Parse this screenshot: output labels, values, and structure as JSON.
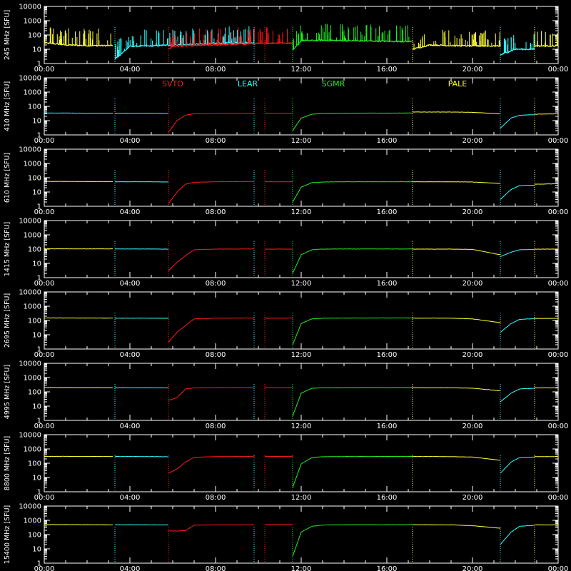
{
  "figure": {
    "background": "#000000",
    "axis_color": "#ffffff",
    "station_colors": {
      "SVTO": "#ff1a1a",
      "LEAR": "#33ffff",
      "SGMR": "#22ee22",
      "PALE": "#ffff33"
    },
    "legend": [
      {
        "name": "SVTO",
        "color": "#ff1a1a"
      },
      {
        "name": "LEAR",
        "color": "#33ffff"
      },
      {
        "name": "SGMR",
        "color": "#22ee22"
      },
      {
        "name": "PALE",
        "color": "#ffff33"
      }
    ],
    "x_tick_labels": [
      "00:00",
      "04:00",
      "08:00",
      "12:00",
      "16:00",
      "20:00",
      "00:00"
    ],
    "y_tick_labels": [
      "1",
      "10",
      "100",
      "1000",
      "10000"
    ]
  },
  "chart_data": {
    "type": "line",
    "x_unit": "hours UT",
    "xlim": [
      0,
      24
    ],
    "y_scale": "log",
    "ylim": [
      1,
      10000
    ],
    "y_unit": "SFU",
    "coverage": [
      {
        "station": "PALE",
        "from": 0,
        "to": 3.2
      },
      {
        "station": "LEAR",
        "from": 3.3,
        "to": 5.8
      },
      {
        "station": "SVTO",
        "from": 5.8,
        "to": 9.8
      },
      {
        "station": "LEAR",
        "from": 9.8,
        "to": 10.3
      },
      {
        "station": "SVTO",
        "from": 10.3,
        "to": 11.6
      },
      {
        "station": "SGMR",
        "from": 11.6,
        "to": 17.2
      },
      {
        "station": "PALE",
        "from": 17.2,
        "to": 21.3
      },
      {
        "station": "LEAR",
        "from": 21.3,
        "to": 22.9
      },
      {
        "station": "PALE",
        "from": 22.9,
        "to": 24
      }
    ],
    "panels": [
      {
        "ylabel": "245 MHz  [SFU]",
        "series": [
          {
            "name": "PALE",
            "x": [
              0,
              0.5,
              1,
              2,
              3.2
            ],
            "y": [
              28,
              24,
              20,
              18,
              18
            ]
          },
          {
            "name": "LEAR",
            "x": [
              3.3,
              4,
              5,
              6,
              7,
              8,
              9.8
            ],
            "y": [
              2,
              16,
              17,
              20,
              22,
              26,
              30
            ]
          },
          {
            "name": "SVTO",
            "x": [
              5.8,
              6,
              10.3,
              11,
              11.6
            ],
            "y": [
              10,
              16,
              26,
              28,
              26
            ]
          },
          {
            "name": "SGMR",
            "x": [
              11.6,
              12,
              13,
              14,
              15,
              16,
              17.2
            ],
            "y": [
              8,
              40,
              42,
              40,
              38,
              36,
              35
            ]
          },
          {
            "name": "PALE",
            "x": [
              17.2,
              18,
              19,
              20,
              21.3
            ],
            "y": [
              10,
              20,
              18,
              17,
              17
            ]
          },
          {
            "name": "LEAR",
            "x": [
              21.3,
              22,
              22.9
            ],
            "y": [
              4,
              10,
              10
            ]
          },
          {
            "name": "PALE",
            "x": [
              22.9,
              24
            ],
            "y": [
              17,
              17
            ]
          }
        ]
      },
      {
        "ylabel": "410 MHz  [SFU]",
        "series": [
          {
            "name": "LEAR",
            "x": [
              0,
              1,
              2,
              3.2
            ],
            "y": [
              34,
              34,
              33,
              33
            ]
          },
          {
            "name": "LEAR",
            "x": [
              3.3,
              4,
              5,
              5.8
            ],
            "y": [
              33,
              33,
              33,
              32
            ]
          },
          {
            "name": "SVTO",
            "x": [
              5.8,
              6.2,
              6.6,
              7,
              8,
              9.8
            ],
            "y": [
              1.5,
              10,
              24,
              30,
              32,
              32
            ]
          },
          {
            "name": "SVTO",
            "x": [
              10.3,
              11.6
            ],
            "y": [
              33,
              33
            ]
          },
          {
            "name": "SGMR",
            "x": [
              11.6,
              12,
              12.5,
              13,
              14,
              17.2
            ],
            "y": [
              2,
              15,
              28,
              32,
              33,
              34
            ]
          },
          {
            "name": "PALE",
            "x": [
              17.2,
              18,
              19,
              20,
              21.3
            ],
            "y": [
              40,
              40,
              40,
              38,
              30
            ]
          },
          {
            "name": "LEAR",
            "x": [
              21.3,
              21.8,
              22.2,
              22.9
            ],
            "y": [
              3,
              15,
              24,
              26
            ]
          },
          {
            "name": "PALE",
            "x": [
              22.9,
              24
            ],
            "y": [
              28,
              30
            ]
          }
        ]
      },
      {
        "ylabel": "610 MHz  [SFU]",
        "series": [
          {
            "name": "PALE",
            "x": [
              0,
              1,
              2,
              3.2
            ],
            "y": [
              55,
              55,
              54,
              54
            ]
          },
          {
            "name": "LEAR",
            "x": [
              3.3,
              4,
              5,
              5.8
            ],
            "y": [
              52,
              52,
              52,
              50
            ]
          },
          {
            "name": "SVTO",
            "x": [
              5.8,
              6.2,
              6.6,
              7,
              8,
              9.8
            ],
            "y": [
              1.5,
              10,
              35,
              48,
              52,
              55
            ]
          },
          {
            "name": "SVTO",
            "x": [
              10.3,
              11.6
            ],
            "y": [
              52,
              52
            ]
          },
          {
            "name": "SGMR",
            "x": [
              11.6,
              12,
              12.5,
              13,
              14,
              17.2
            ],
            "y": [
              2,
              22,
              45,
              50,
              52,
              52
            ]
          },
          {
            "name": "PALE",
            "x": [
              17.2,
              18,
              19,
              20,
              21.3
            ],
            "y": [
              52,
              52,
              52,
              50,
              40
            ]
          },
          {
            "name": "LEAR",
            "x": [
              21.3,
              21.8,
              22.2,
              22.9
            ],
            "y": [
              3,
              15,
              28,
              30
            ]
          },
          {
            "name": "PALE",
            "x": [
              22.9,
              24
            ],
            "y": [
              35,
              38
            ]
          }
        ]
      },
      {
        "ylabel": "1415 MHz  [SFU]",
        "series": [
          {
            "name": "PALE",
            "x": [
              0,
              1,
              2,
              3.2
            ],
            "y": [
              105,
              105,
              104,
              104
            ]
          },
          {
            "name": "LEAR",
            "x": [
              3.3,
              4,
              5,
              5.8
            ],
            "y": [
              102,
              102,
              102,
              100
            ]
          },
          {
            "name": "SVTO",
            "x": [
              5.8,
              6.2,
              6.6,
              7,
              8,
              9.8
            ],
            "y": [
              3,
              12,
              35,
              90,
              100,
              102
            ]
          },
          {
            "name": "SVTO",
            "x": [
              10.3,
              11.6
            ],
            "y": [
              100,
              100
            ]
          },
          {
            "name": "SGMR",
            "x": [
              11.6,
              12,
              12.5,
              13,
              14,
              17.2
            ],
            "y": [
              2,
              40,
              90,
              100,
              102,
              102
            ]
          },
          {
            "name": "PALE",
            "x": [
              17.2,
              18,
              19,
              20,
              21.3
            ],
            "y": [
              100,
              100,
              100,
              95,
              40
            ]
          },
          {
            "name": "LEAR",
            "x": [
              21.3,
              21.8,
              22.2,
              22.9
            ],
            "y": [
              30,
              60,
              90,
              95
            ]
          },
          {
            "name": "PALE",
            "x": [
              22.9,
              24
            ],
            "y": [
              100,
              100
            ]
          }
        ]
      },
      {
        "ylabel": "2695 MHz  [SFU]",
        "series": [
          {
            "name": "PALE",
            "x": [
              0,
              1,
              2,
              3.2
            ],
            "y": [
              150,
              150,
              148,
              148
            ]
          },
          {
            "name": "LEAR",
            "x": [
              3.3,
              4,
              5,
              5.8
            ],
            "y": [
              145,
              145,
              145,
              142
            ]
          },
          {
            "name": "SVTO",
            "x": [
              5.8,
              6.2,
              6.6,
              7,
              8,
              9.8
            ],
            "y": [
              3,
              15,
              45,
              130,
              145,
              148
            ]
          },
          {
            "name": "SVTO",
            "x": [
              10.3,
              11.6
            ],
            "y": [
              145,
              145
            ]
          },
          {
            "name": "SGMR",
            "x": [
              11.6,
              12,
              12.5,
              13,
              14,
              17.2
            ],
            "y": [
              2,
              60,
              130,
              145,
              148,
              150
            ]
          },
          {
            "name": "PALE",
            "x": [
              17.2,
              18,
              19,
              20,
              21.3
            ],
            "y": [
              145,
              145,
              145,
              130,
              70
            ]
          },
          {
            "name": "LEAR",
            "x": [
              21.3,
              21.8,
              22.2,
              22.9
            ],
            "y": [
              15,
              60,
              120,
              135
            ]
          },
          {
            "name": "PALE",
            "x": [
              22.9,
              24
            ],
            "y": [
              140,
              140
            ]
          }
        ]
      },
      {
        "ylabel": "4995 MHz  [SFU]",
        "series": [
          {
            "name": "PALE",
            "x": [
              0,
              1,
              2,
              3.2
            ],
            "y": [
              200,
              200,
              198,
              196
            ]
          },
          {
            "name": "LEAR",
            "x": [
              3.3,
              4,
              5,
              5.8
            ],
            "y": [
              195,
              195,
              195,
              190
            ]
          },
          {
            "name": "SVTO",
            "x": [
              5.8,
              6.2,
              6.6,
              7,
              8,
              9.8
            ],
            "y": [
              25,
              40,
              160,
              190,
              200,
              200
            ]
          },
          {
            "name": "SVTO",
            "x": [
              10.3,
              11.6
            ],
            "y": [
              198,
              198
            ]
          },
          {
            "name": "SGMR",
            "x": [
              11.6,
              12,
              12.5,
              13,
              14,
              17.2
            ],
            "y": [
              2,
              80,
              180,
              195,
              198,
              200
            ]
          },
          {
            "name": "PALE",
            "x": [
              17.2,
              18,
              19,
              20,
              21.3
            ],
            "y": [
              195,
              195,
              195,
              180,
              120
            ]
          },
          {
            "name": "LEAR",
            "x": [
              21.3,
              21.8,
              22.2,
              22.9
            ],
            "y": [
              20,
              80,
              160,
              180
            ]
          },
          {
            "name": "PALE",
            "x": [
              22.9,
              24
            ],
            "y": [
              190,
              190
            ]
          }
        ]
      },
      {
        "ylabel": "8800 MHz  [SFU]",
        "series": [
          {
            "name": "PALE",
            "x": [
              0,
              1,
              2,
              3.2
            ],
            "y": [
              300,
              300,
              298,
              295
            ]
          },
          {
            "name": "LEAR",
            "x": [
              3.3,
              4,
              5,
              5.8
            ],
            "y": [
              295,
              295,
              290,
              285
            ]
          },
          {
            "name": "SVTO",
            "x": [
              5.8,
              6.2,
              6.6,
              7,
              8,
              9.8
            ],
            "y": [
              20,
              40,
              120,
              260,
              290,
              295
            ]
          },
          {
            "name": "SVTO",
            "x": [
              10.3,
              11.6
            ],
            "y": [
              300,
              300
            ]
          },
          {
            "name": "SGMR",
            "x": [
              11.6,
              12,
              12.5,
              13,
              14,
              17.2
            ],
            "y": [
              2,
              90,
              250,
              285,
              295,
              300
            ]
          },
          {
            "name": "PALE",
            "x": [
              17.2,
              18,
              19,
              20,
              21.3
            ],
            "y": [
              295,
              295,
              290,
              270,
              160
            ]
          },
          {
            "name": "LEAR",
            "x": [
              21.3,
              21.8,
              22.2,
              22.9
            ],
            "y": [
              20,
              120,
              250,
              270
            ]
          },
          {
            "name": "PALE",
            "x": [
              22.9,
              24
            ],
            "y": [
              290,
              290
            ]
          }
        ]
      },
      {
        "ylabel": "15400 MHz  [SFU]",
        "series": [
          {
            "name": "PALE",
            "x": [
              0,
              1,
              2,
              3.2
            ],
            "y": [
              500,
              500,
              495,
              490
            ]
          },
          {
            "name": "LEAR",
            "x": [
              3.3,
              4,
              5,
              5.8
            ],
            "y": [
              490,
              490,
              485,
              480
            ]
          },
          {
            "name": "SVTO",
            "x": [
              5.8,
              6.2,
              6.6,
              7,
              8,
              9.8
            ],
            "y": [
              180,
              180,
              190,
              460,
              480,
              490
            ]
          },
          {
            "name": "SVTO",
            "x": [
              10.3,
              11.6
            ],
            "y": [
              500,
              500
            ]
          },
          {
            "name": "SGMR",
            "x": [
              11.6,
              12,
              12.5,
              13,
              14,
              17.2
            ],
            "y": [
              3,
              150,
              380,
              470,
              490,
              500
            ]
          },
          {
            "name": "PALE",
            "x": [
              17.2,
              18,
              19,
              20,
              21.3
            ],
            "y": [
              490,
              490,
              480,
              420,
              280
            ]
          },
          {
            "name": "LEAR",
            "x": [
              21.3,
              21.8,
              22.2,
              22.9
            ],
            "y": [
              20,
              150,
              380,
              450
            ]
          },
          {
            "name": "PALE",
            "x": [
              22.9,
              24
            ],
            "y": [
              480,
              480
            ]
          }
        ]
      }
    ]
  }
}
